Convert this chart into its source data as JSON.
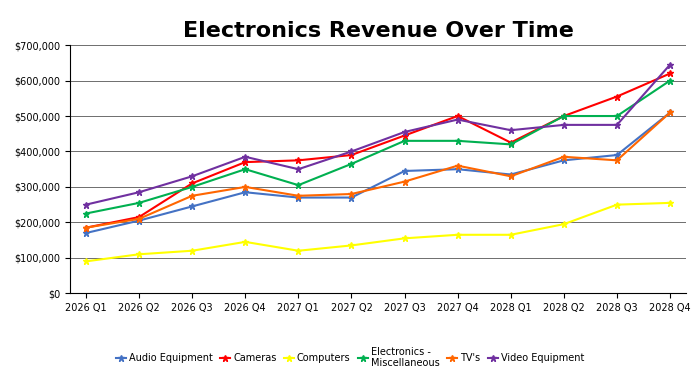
{
  "title": "Electronics Revenue Over Time",
  "x_labels": [
    "2026 Q1",
    "2026 Q2",
    "2026 Q3",
    "2026 Q4",
    "2027 Q1",
    "2027 Q2",
    "2027 Q3",
    "2027 Q4",
    "2028 Q1",
    "2028 Q2",
    "2028 Q3",
    "2028 Q4"
  ],
  "series": {
    "Audio Equipment": {
      "color": "#4472C4",
      "marker": "*",
      "values": [
        170000,
        205000,
        245000,
        285000,
        270000,
        270000,
        345000,
        350000,
        335000,
        375000,
        390000,
        510000
      ]
    },
    "Cameras": {
      "color": "#FF0000",
      "marker": "*",
      "values": [
        185000,
        215000,
        310000,
        370000,
        375000,
        390000,
        445000,
        500000,
        425000,
        500000,
        555000,
        620000
      ]
    },
    "Computers": {
      "color": "#FFFF00",
      "marker": "*",
      "values": [
        90000,
        110000,
        120000,
        145000,
        120000,
        135000,
        155000,
        165000,
        165000,
        195000,
        250000,
        255000
      ]
    },
    "Electronics -\nMiscellaneous": {
      "color": "#00B050",
      "marker": "*",
      "values": [
        225000,
        255000,
        300000,
        350000,
        305000,
        365000,
        430000,
        430000,
        420000,
        500000,
        500000,
        600000
      ]
    },
    "TV's": {
      "color": "#FF6600",
      "marker": "*",
      "values": [
        185000,
        210000,
        275000,
        300000,
        275000,
        280000,
        315000,
        360000,
        330000,
        385000,
        375000,
        510000
      ]
    },
    "Video Equipment": {
      "color": "#7030A0",
      "marker": "*",
      "values": [
        250000,
        285000,
        330000,
        385000,
        350000,
        400000,
        455000,
        490000,
        460000,
        475000,
        475000,
        645000
      ]
    }
  },
  "ylim": [
    0,
    700000
  ],
  "yticks": [
    0,
    100000,
    200000,
    300000,
    400000,
    500000,
    600000,
    700000
  ],
  "background_color": "#FFFFFF",
  "title_fontsize": 16,
  "tick_fontsize": 7,
  "legend_fontsize": 7
}
